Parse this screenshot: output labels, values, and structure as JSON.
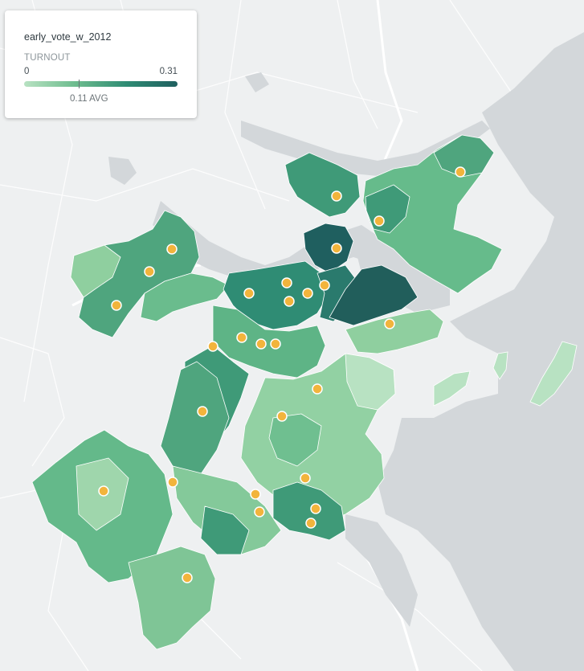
{
  "legend": {
    "title": "early_vote_w_2012",
    "metric_label": "TURNOUT",
    "min": "0",
    "max": "0.31",
    "avg_label": "0.11 AVG",
    "avg_value": 0.11,
    "range": [
      0,
      0.31
    ],
    "gradient_colors": [
      "#b8e2c2",
      "#6dbc8e",
      "#2f8c74",
      "#1f5f5f"
    ]
  },
  "colors": {
    "water": "#d3d7da",
    "land": "#eef0f1",
    "marker_fill": "#f2b43c",
    "marker_stroke": "#ffffff",
    "tract_stroke": "#ffffff"
  },
  "map": {
    "basemap": "light-gray street map",
    "layer": "choropleth of precincts",
    "marker_count": 29
  }
}
